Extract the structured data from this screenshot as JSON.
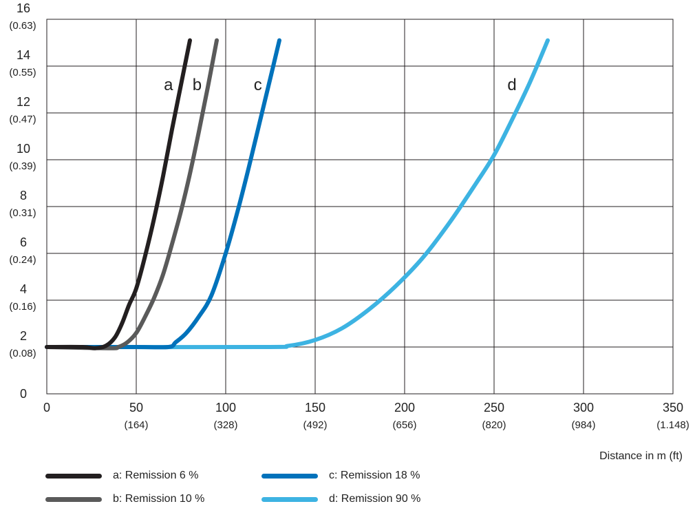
{
  "chart_data": {
    "type": "line",
    "xlabel": "Distance in m (ft)",
    "ylabel": "",
    "xlim": [
      0,
      350
    ],
    "ylim": [
      0,
      16
    ],
    "grid": true,
    "x_ticks": [
      {
        "value": 0,
        "label": "0",
        "sub": ""
      },
      {
        "value": 50,
        "label": "50",
        "sub": "(164)"
      },
      {
        "value": 100,
        "label": "100",
        "sub": "(328)"
      },
      {
        "value": 150,
        "label": "150",
        "sub": "(492)"
      },
      {
        "value": 200,
        "label": "200",
        "sub": "(656)"
      },
      {
        "value": 250,
        "label": "250",
        "sub": "(820)"
      },
      {
        "value": 300,
        "label": "300",
        "sub": "(984)"
      },
      {
        "value": 350,
        "label": "350",
        "sub": "(1.148)"
      }
    ],
    "y_ticks": [
      {
        "value": 0,
        "label": "0",
        "sub": ""
      },
      {
        "value": 2,
        "label": "2",
        "sub": "(0.08)"
      },
      {
        "value": 4,
        "label": "4",
        "sub": "(0.16)"
      },
      {
        "value": 6,
        "label": "6",
        "sub": "(0.24)"
      },
      {
        "value": 8,
        "label": "8",
        "sub": "(0.31)"
      },
      {
        "value": 10,
        "label": "10",
        "sub": "(0.39)"
      },
      {
        "value": 12,
        "label": "12",
        "sub": "(0.47)"
      },
      {
        "value": 14,
        "label": "14",
        "sub": "(0.55)"
      },
      {
        "value": 16,
        "label": "16",
        "sub": "(0.63)"
      }
    ],
    "series": [
      {
        "name": "a: Remission 6 %",
        "label": "a",
        "label_at": [
          68,
          13.2
        ],
        "color": "#231f20",
        "points": [
          [
            0,
            2
          ],
          [
            20,
            2
          ],
          [
            27,
            1.95
          ],
          [
            33,
            2.05
          ],
          [
            38,
            2.4
          ],
          [
            42,
            3.0
          ],
          [
            46,
            3.8
          ],
          [
            50,
            4.5
          ],
          [
            55,
            5.9
          ],
          [
            60,
            7.5
          ],
          [
            65,
            9.3
          ],
          [
            70,
            11.3
          ],
          [
            75,
            13.2
          ],
          [
            80,
            15.1
          ]
        ]
      },
      {
        "name": "b: Remission 10 %",
        "label": "b",
        "label_at": [
          84,
          13.2
        ],
        "color": "#5a5a5a",
        "points": [
          [
            0,
            2
          ],
          [
            35,
            1.95
          ],
          [
            40,
            2.0
          ],
          [
            45,
            2.2
          ],
          [
            50,
            2.6
          ],
          [
            55,
            3.3
          ],
          [
            60,
            4.1
          ],
          [
            65,
            5.1
          ],
          [
            70,
            6.4
          ],
          [
            75,
            7.8
          ],
          [
            80,
            9.4
          ],
          [
            85,
            11.2
          ],
          [
            90,
            13.1
          ],
          [
            95,
            15.1
          ]
        ]
      },
      {
        "name": "c: Remission 18 %",
        "label": "c",
        "label_at": [
          118,
          13.2
        ],
        "color": "#0072bb",
        "points": [
          [
            0,
            2
          ],
          [
            50,
            2
          ],
          [
            68,
            2
          ],
          [
            72,
            2.2
          ],
          [
            78,
            2.6
          ],
          [
            85,
            3.3
          ],
          [
            92,
            4.2
          ],
          [
            100,
            6.0
          ],
          [
            107,
            7.9
          ],
          [
            113,
            9.7
          ],
          [
            119,
            11.6
          ],
          [
            125,
            13.5
          ],
          [
            130,
            15.1
          ]
        ]
      },
      {
        "name": "d: Remission 90 %",
        "label": "d",
        "label_at": [
          260,
          13.2
        ],
        "color": "#3db3e2",
        "points": [
          [
            0,
            2
          ],
          [
            120,
            2
          ],
          [
            135,
            2.05
          ],
          [
            150,
            2.3
          ],
          [
            165,
            2.8
          ],
          [
            180,
            3.6
          ],
          [
            195,
            4.6
          ],
          [
            210,
            5.8
          ],
          [
            225,
            7.3
          ],
          [
            240,
            9.0
          ],
          [
            250,
            10.2
          ],
          [
            260,
            11.7
          ],
          [
            270,
            13.3
          ],
          [
            280,
            15.1
          ]
        ]
      }
    ]
  }
}
